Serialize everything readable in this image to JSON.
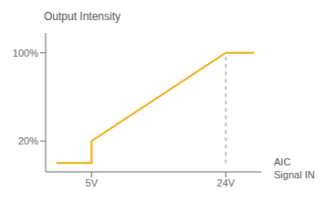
{
  "chart_data": {
    "type": "line",
    "ylabel": "Output Intensity",
    "xlabel": "AIC\nSignal IN",
    "series": [
      {
        "x": [
          0,
          5,
          5,
          24,
          28
        ],
        "values": [
          0,
          0,
          20,
          100,
          100
        ],
        "color": "#F5A800",
        "line_style": "solid"
      },
      {
        "x": [
          24,
          24
        ],
        "values": [
          0,
          100
        ],
        "color": "#C0C0C0",
        "line_style": "dashed"
      }
    ],
    "xlim": [
      -1.5,
      29
    ],
    "ylim": [
      -8,
      118
    ],
    "xticks": [
      {
        "value": 5,
        "label": "5V"
      },
      {
        "value": 24,
        "label": "24V"
      }
    ],
    "yticks": [
      {
        "value": 20,
        "label": "20%"
      },
      {
        "value": 100,
        "label": "100%"
      }
    ],
    "grid": false
  }
}
